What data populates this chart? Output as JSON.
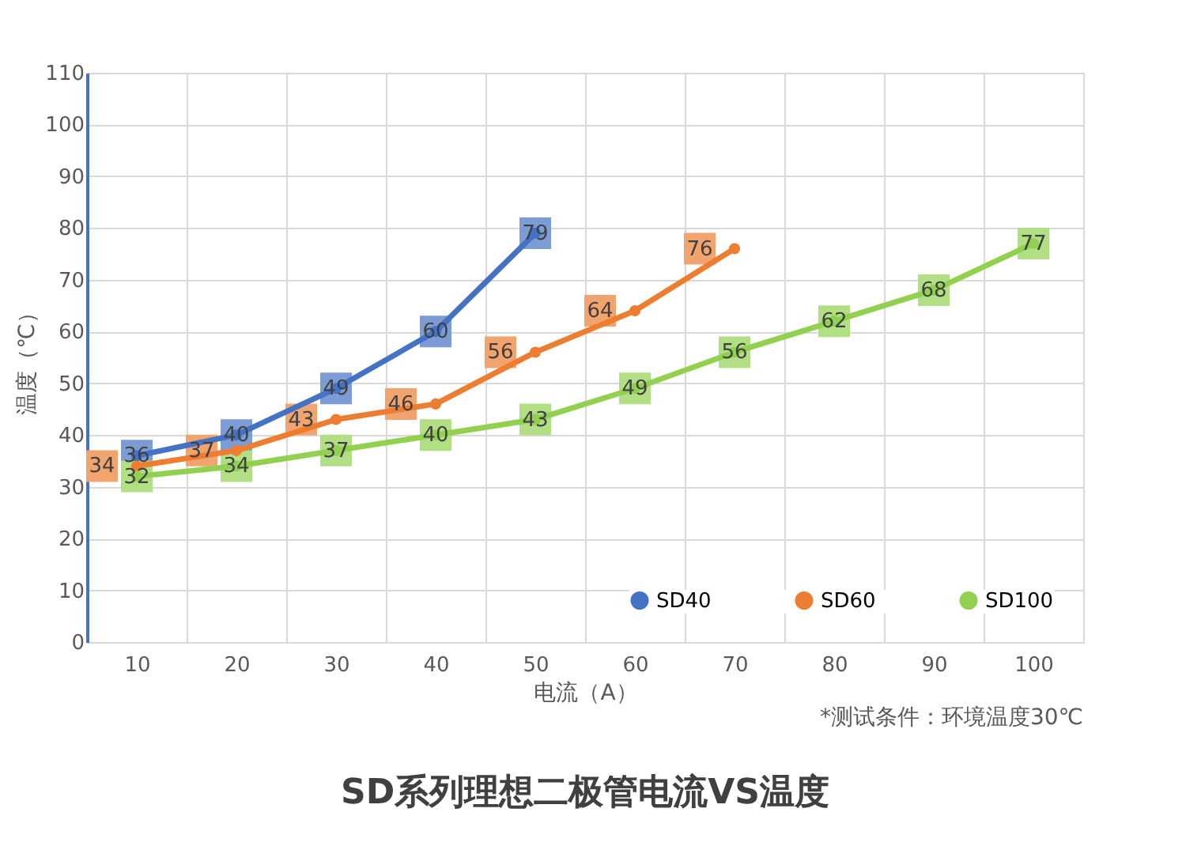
{
  "chart_data": {
    "type": "line",
    "title": "SD系列理想二极管电流VS温度",
    "xlabel": "电流（A）",
    "ylabel": "温度（℃）",
    "annotations": [
      "*测试条件：环境温度30℃"
    ],
    "categories": [
      "10",
      "20",
      "30",
      "40",
      "50",
      "60",
      "70",
      "80",
      "90",
      "100"
    ],
    "series": [
      {
        "name": "SD40",
        "color": "#4472c4",
        "values": [
          36,
          40,
          49,
          60,
          79,
          null,
          null,
          null,
          null,
          null
        ]
      },
      {
        "name": "SD60",
        "color": "#ed7d31",
        "values": [
          34,
          37,
          43,
          46,
          56,
          64,
          76,
          null,
          null,
          null
        ]
      },
      {
        "name": "SD100",
        "color": "#92d050",
        "values": [
          32,
          34,
          37,
          40,
          43,
          49,
          56,
          62,
          68,
          77
        ]
      }
    ],
    "ylim": [
      0,
      110
    ],
    "yticks": [
      0,
      10,
      20,
      30,
      40,
      50,
      60,
      70,
      80,
      90,
      100,
      110
    ],
    "grid": true,
    "legend": "bottom right",
    "marker": "circle",
    "line_style": "solid",
    "data_labels": true
  }
}
